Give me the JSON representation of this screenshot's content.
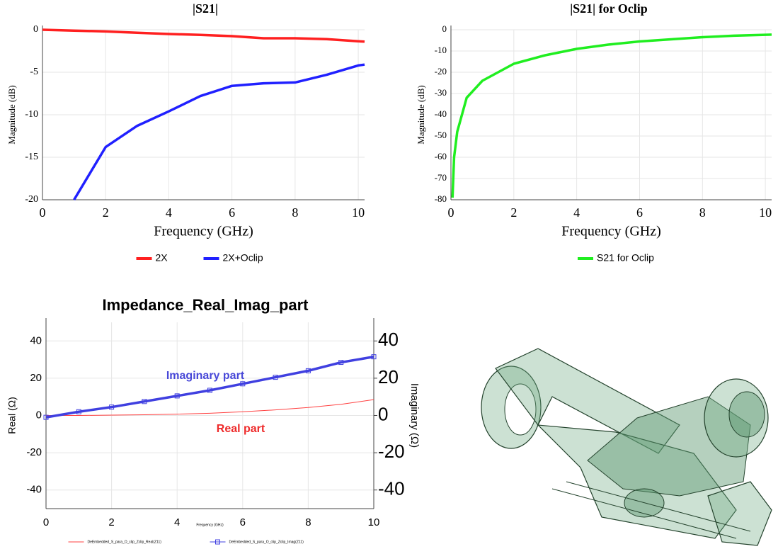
{
  "chart_data": [
    {
      "type": "line",
      "title": "|S21|",
      "xlabel": "Frequency (GHz)",
      "ylabel": "Magnitude (dB)",
      "x": [
        0,
        1,
        2,
        3,
        4,
        5,
        6,
        7,
        8,
        9,
        10,
        10.2
      ],
      "series": [
        {
          "name": "2X",
          "color": "#ff2020",
          "values": [
            0,
            -0.1,
            -0.2,
            -0.35,
            -0.5,
            -0.6,
            -0.75,
            -1.0,
            -1.0,
            -1.1,
            -1.35,
            -1.4
          ]
        },
        {
          "name": "2X+Oclip",
          "color": "#2020ff",
          "values": [
            null,
            -20,
            -13.8,
            -11.3,
            -9.6,
            -7.8,
            -6.6,
            -6.3,
            -6.2,
            -5.3,
            -4.2,
            -4.1
          ]
        }
      ],
      "xlim": [
        0,
        10.2
      ],
      "ylim": [
        -20,
        0
      ],
      "xticks": [
        0,
        2,
        4,
        6,
        8,
        10
      ],
      "yticks": [
        0,
        -5,
        -10,
        -15,
        -20
      ],
      "grid": true,
      "legend": "bottom"
    },
    {
      "type": "line",
      "title": "|S21| for Oclip",
      "xlabel": "Frequency (GHz)",
      "ylabel": "Magnitude (dB)",
      "x": [
        0.05,
        0.1,
        0.2,
        0.5,
        1,
        2,
        3,
        4,
        5,
        6,
        7,
        8,
        9,
        10.2
      ],
      "series": [
        {
          "name": "S21 for Oclip",
          "color": "#20ee20",
          "values": [
            -79,
            -60,
            -48,
            -32,
            -24,
            -16,
            -12,
            -9,
            -7,
            -5.5,
            -4.5,
            -3.5,
            -2.8,
            -2.3
          ]
        }
      ],
      "xlim": [
        0,
        10.2
      ],
      "ylim": [
        -80,
        0
      ],
      "xticks": [
        0,
        2,
        4,
        6,
        8,
        10
      ],
      "yticks": [
        0,
        -10,
        -20,
        -30,
        -40,
        -50,
        -60,
        -70,
        -80
      ],
      "grid": true,
      "legend": "bottom"
    },
    {
      "type": "line",
      "title": "Impedance_Real_Imag_part",
      "xlabel": "Frequency (GHz)",
      "ylabel": "Real (Ω)",
      "y2label": "Imaginary (Ω)",
      "x": [
        0,
        1,
        2,
        3,
        4,
        5,
        6,
        7,
        8,
        9,
        10
      ],
      "series": [
        {
          "name": "DeEmbedded_S_para_O_clip_Zclip_Real(Z11)",
          "color": "#ff4040",
          "values": [
            0,
            0,
            0.2,
            0.4,
            0.7,
            1.2,
            2,
            3,
            4.3,
            6,
            8.5
          ]
        },
        {
          "name": "DeEmbedded_S_para_O_clip_Zclip_Imag(Z11)",
          "color": "#4040e0",
          "axis": "y2",
          "marker": "square",
          "values": [
            -1,
            2,
            4.5,
            7.5,
            10.5,
            13.5,
            17,
            20.5,
            24,
            28.5,
            31.5
          ]
        }
      ],
      "annotations": [
        {
          "text": "Imaginary part",
          "color": "#4848d8"
        },
        {
          "text": "Real part",
          "color": "#ee2a2a"
        }
      ],
      "xlim": [
        0,
        10
      ],
      "ylim": [
        -50,
        50
      ],
      "y2lim": [
        -50,
        50
      ],
      "xticks": [
        0,
        2,
        4,
        6,
        8,
        10
      ],
      "yticks": [
        -40,
        -20,
        0,
        20,
        40
      ],
      "y2ticks": [
        -40,
        -20,
        0,
        20,
        40
      ],
      "grid": true,
      "legend": "bottom"
    }
  ]
}
